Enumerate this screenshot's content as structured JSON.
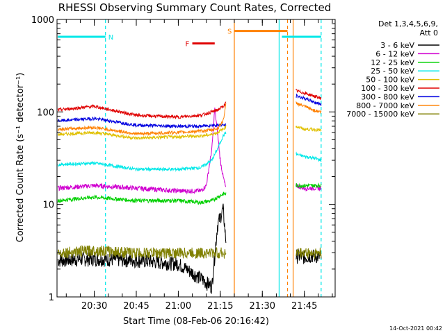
{
  "chart_data": {
    "type": "line",
    "title": "RHESSI Observing Summary Count Rates, Corrected",
    "xlabel": "Start Time (08-Feb-06 20:16:42)",
    "ylabel": "Corrected Count Rate (s⁻¹ detector⁻¹)",
    "y_scale": "log",
    "ylim": [
      1,
      1000
    ],
    "xlim": [
      "20:16:42",
      "21:56:00"
    ],
    "x_ticks": [
      "20:30",
      "20:45",
      "21:00",
      "21:15",
      "21:30",
      "21:45"
    ],
    "y_ticks": [
      "1",
      "10",
      "100",
      "1000"
    ],
    "legend_header": [
      "Det 1,3,4,5,6,9,",
      "Att 0"
    ],
    "legend_position": "right",
    "series": [
      {
        "name": "3 - 6 keV",
        "color": "#000000",
        "x": [
          "20:17",
          "20:30",
          "20:45",
          "21:00",
          "21:08",
          "21:12",
          "21:14",
          "21:16",
          "21:17"
        ],
        "y": [
          2.5,
          2.6,
          2.5,
          2.3,
          1.6,
          1.3,
          6,
          9,
          4
        ]
      },
      {
        "name": "6 - 12 keV",
        "color": "#d000d0",
        "x": [
          "20:17",
          "20:30",
          "20:45",
          "21:00",
          "21:08",
          "21:10",
          "21:12",
          "21:13",
          "21:14",
          "21:15",
          "21:16",
          "21:17"
        ],
        "y": [
          15,
          16,
          15,
          14,
          14,
          16,
          40,
          110,
          60,
          30,
          20,
          15
        ]
      },
      {
        "name": "12 - 25 keV",
        "color": "#00d000",
        "x": [
          "20:17",
          "20:30",
          "20:45",
          "21:00",
          "21:08",
          "21:12",
          "21:14",
          "21:16",
          "21:17"
        ],
        "y": [
          11,
          12,
          11,
          11,
          10.5,
          11,
          12,
          13,
          13
        ]
      },
      {
        "name": "25 - 50 keV",
        "color": "#00e8e8",
        "x": [
          "20:17",
          "20:30",
          "20:45",
          "21:00",
          "21:08",
          "21:12",
          "21:14",
          "21:16",
          "21:17"
        ],
        "y": [
          27,
          28,
          24,
          24,
          25,
          30,
          40,
          55,
          60
        ]
      },
      {
        "name": "50 - 100 keV",
        "color": "#e0c000",
        "x": [
          "20:17",
          "20:30",
          "20:45",
          "21:00",
          "21:08",
          "21:12",
          "21:14",
          "21:16",
          "21:17"
        ],
        "y": [
          57,
          60,
          52,
          54,
          55,
          57,
          60,
          65,
          70
        ]
      },
      {
        "name": "100 - 300 keV",
        "color": "#e00000",
        "x": [
          "20:17",
          "20:30",
          "20:45",
          "21:00",
          "21:08",
          "21:12",
          "21:14",
          "21:16",
          "21:17"
        ],
        "y": [
          105,
          115,
          92,
          88,
          92,
          100,
          105,
          115,
          125
        ]
      },
      {
        "name": "300 - 800 keV",
        "color": "#0000e0",
        "x": [
          "20:17",
          "20:30",
          "20:45",
          "21:00",
          "21:08",
          "21:12",
          "21:14",
          "21:16",
          "21:17"
        ],
        "y": [
          80,
          85,
          72,
          70,
          70,
          72,
          72,
          72,
          72
        ]
      },
      {
        "name": "800 - 7000 keV",
        "color": "#ff8000",
        "x": [
          "20:17",
          "20:30",
          "20:45",
          "21:00",
          "21:08",
          "21:12",
          "21:14",
          "21:16",
          "21:17"
        ],
        "y": [
          65,
          68,
          58,
          60,
          62,
          64,
          66,
          80,
          120
        ]
      },
      {
        "name": "7000 - 15000 keV",
        "color": "#808000",
        "x": [
          "20:17",
          "20:30",
          "20:45",
          "21:00",
          "21:08",
          "21:12",
          "21:14",
          "21:16",
          "21:17"
        ],
        "y": [
          3,
          3.2,
          3,
          3,
          3,
          3,
          3,
          3,
          3
        ]
      }
    ],
    "right_segment": {
      "x": [
        "21:42",
        "21:45",
        "21:48",
        "21:51"
      ],
      "series_y": [
        [
          2.8,
          2.7,
          2.8,
          2.7
        ],
        [
          16,
          15,
          15,
          15
        ],
        [
          16,
          16,
          16,
          16
        ],
        [
          35,
          33,
          32,
          30
        ],
        [
          70,
          65,
          65,
          63
        ],
        [
          170,
          160,
          150,
          140
        ],
        [
          150,
          140,
          130,
          120
        ],
        [
          125,
          115,
          105,
          100
        ],
        [
          3,
          3,
          3,
          3
        ]
      ]
    },
    "flags": [
      {
        "label": "N",
        "color": "#00e8e8",
        "start": "20:17",
        "end": "20:34",
        "level": 650
      },
      {
        "label": "",
        "color": "#00e8e8",
        "start": "21:37",
        "end": "21:51",
        "level": 650
      },
      {
        "label": "F",
        "color": "#e00000",
        "start": "21:05",
        "end": "21:13",
        "level": 550
      },
      {
        "label": "S",
        "color": "#ff8000",
        "start": "21:20",
        "end": "21:39",
        "level": 750
      }
    ],
    "vlines": [
      {
        "time": "20:34",
        "color": "#00e8e8",
        "style": "dashed"
      },
      {
        "time": "21:20",
        "color": "#ff8000",
        "style": "solid"
      },
      {
        "time": "21:36",
        "color": "#00e8e8",
        "style": "solid"
      },
      {
        "time": "21:39",
        "color": "#ff8000",
        "style": "dashed"
      },
      {
        "time": "21:41",
        "color": "#ff8000",
        "style": "solid"
      },
      {
        "time": "21:51",
        "color": "#00e8e8",
        "style": "dashed"
      }
    ],
    "grid": false
  },
  "footer_date": "14-Oct-2021 00:42"
}
